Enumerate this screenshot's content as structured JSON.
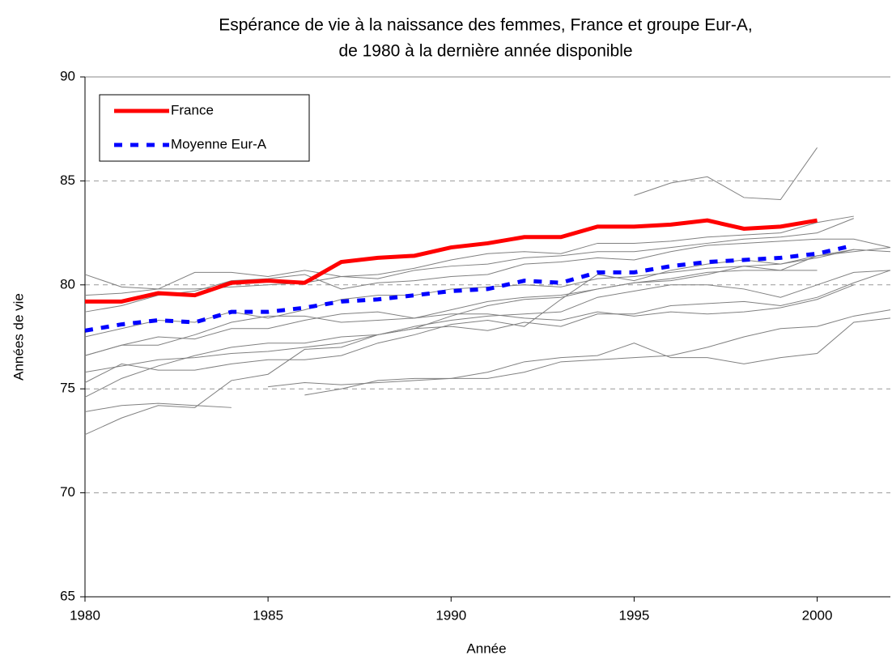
{
  "chart_data": {
    "type": "line",
    "title": [
      "Espérance de vie à la naissance des femmes, France et groupe Eur-A,",
      "de 1980 à la dernière année disponible"
    ],
    "x_label": "Année",
    "y_label": "Années de vie",
    "x": [
      1980,
      1981,
      1982,
      1983,
      1984,
      1985,
      1986,
      1987,
      1988,
      1989,
      1990,
      1991,
      1992,
      1993,
      1994,
      1995,
      1996,
      1997,
      1998,
      1999,
      2000,
      2001,
      2002
    ],
    "xlim": [
      1980,
      2002
    ],
    "xticks": [
      1980,
      1985,
      1990,
      1995,
      2000
    ],
    "ylim": [
      65,
      90
    ],
    "yticks": [
      65,
      70,
      75,
      80,
      85,
      90
    ],
    "grid": true,
    "legend": "top-left",
    "series": [
      {
        "name": "France",
        "color": "#ff0000",
        "style": "solid",
        "values": [
          79.2,
          79.2,
          79.6,
          79.5,
          80.1,
          80.2,
          80.1,
          81.1,
          81.3,
          81.4,
          81.8,
          82.0,
          82.3,
          82.3,
          82.8,
          82.8,
          82.9,
          83.1,
          82.7,
          82.8,
          83.1,
          null,
          null
        ]
      },
      {
        "name": "Moyenne Eur-A",
        "color": "#0000ff",
        "style": "dashed",
        "values": [
          77.8,
          78.1,
          78.3,
          78.2,
          78.7,
          78.7,
          78.9,
          79.2,
          79.3,
          79.5,
          79.7,
          79.8,
          80.2,
          80.1,
          80.6,
          80.6,
          80.9,
          81.1,
          81.2,
          81.3,
          81.5,
          81.9,
          null
        ]
      },
      {
        "color": "#808080",
        "values": [
          80.5,
          79.9,
          79.8,
          79.8,
          79.9,
          80.0,
          80.1,
          80.4,
          80.3,
          80.7,
          80.9,
          81.0,
          81.3,
          81.4,
          81.6,
          81.6,
          81.8,
          82.0,
          82.2,
          82.3,
          82.5,
          83.2,
          null
        ]
      },
      {
        "color": "#808080",
        "values": [
          79.5,
          79.6,
          79.8,
          80.6,
          80.6,
          80.4,
          80.7,
          80.4,
          80.5,
          80.8,
          81.2,
          81.5,
          81.6,
          81.5,
          82.0,
          82.0,
          82.1,
          82.3,
          82.4,
          82.5,
          83.0,
          83.3,
          null
        ]
      },
      {
        "color": "#808080",
        "values": [
          78.7,
          79.0,
          79.5,
          79.7,
          80.2,
          80.3,
          80.5,
          79.8,
          80.1,
          80.2,
          80.4,
          80.5,
          81.0,
          81.1,
          81.3,
          81.2,
          81.6,
          81.9,
          82.0,
          82.1,
          82.2,
          82.2,
          81.8
        ]
      },
      {
        "color": "#808080",
        "values": [
          77.5,
          77.9,
          78.3,
          78.2,
          78.7,
          78.4,
          78.8,
          79.3,
          79.5,
          79.5,
          79.8,
          79.9,
          80.0,
          79.9,
          80.3,
          80.4,
          80.6,
          80.8,
          80.9,
          81.0,
          81.3,
          81.7,
          81.6
        ]
      },
      {
        "color": "#808080",
        "values": [
          76.6,
          77.1,
          77.5,
          77.4,
          77.9,
          77.9,
          78.3,
          78.6,
          78.7,
          78.4,
          78.8,
          79.2,
          79.4,
          79.5,
          79.8,
          80.1,
          80.2,
          80.5,
          80.9,
          80.7,
          81.4,
          81.6,
          81.8
        ]
      },
      {
        "color": "#808080",
        "values": [
          76.6,
          77.1,
          77.1,
          77.6,
          78.2,
          78.5,
          78.5,
          78.2,
          78.3,
          78.4,
          78.6,
          78.6,
          78.4,
          78.3,
          78.7,
          78.5,
          78.7,
          78.6,
          78.7,
          78.9,
          79.3,
          80.0,
          null
        ]
      },
      {
        "color": "#808080",
        "values": [
          75.8,
          76.1,
          76.4,
          76.5,
          76.7,
          76.8,
          77.0,
          77.2,
          77.6,
          78.0,
          78.3,
          78.5,
          78.6,
          78.7,
          79.4,
          79.7,
          80.0,
          80.0,
          79.8,
          79.4,
          80.0,
          80.6,
          80.7
        ]
      },
      {
        "color": "#808080",
        "values": [
          75.3,
          76.2,
          75.9,
          75.9,
          76.2,
          76.4,
          76.4,
          76.6,
          77.2,
          77.6,
          78.1,
          78.3,
          78.0,
          79.3,
          80.5,
          80.2,
          80.7,
          81.0,
          81.2,
          81.0,
          81.4,
          81.7,
          null
        ]
      },
      {
        "color": "#808080",
        "values": [
          74.6,
          75.5,
          76.1,
          76.6,
          77.0,
          77.2,
          77.2,
          77.5,
          77.6,
          77.9,
          78.0,
          77.8,
          78.2,
          78.0,
          78.6,
          78.6,
          79.0,
          79.1,
          79.2,
          79.0,
          79.4,
          80.1,
          80.7
        ]
      },
      {
        "color": "#808080",
        "values": [
          73.9,
          74.2,
          74.3,
          74.2,
          74.1,
          null,
          null,
          null,
          null,
          null,
          null,
          null,
          null,
          null,
          null,
          null,
          null,
          null,
          null,
          null,
          null,
          null,
          null
        ]
      },
      {
        "color": "#808080",
        "values": [
          72.8,
          73.6,
          74.2,
          74.1,
          75.4,
          75.7,
          76.9,
          77.0,
          77.6,
          77.9,
          78.5,
          79.0,
          79.3,
          79.4,
          79.8,
          80.1,
          80.3,
          80.6,
          80.7,
          80.7,
          80.7,
          null,
          null
        ]
      },
      {
        "color": "#808080",
        "values": [
          null,
          null,
          null,
          null,
          null,
          75.1,
          75.3,
          75.2,
          75.3,
          75.4,
          75.5,
          75.5,
          75.8,
          76.3,
          76.4,
          76.5,
          76.6,
          77.0,
          77.5,
          77.9,
          78.0,
          78.5,
          78.8
        ]
      },
      {
        "color": "#808080",
        "values": [
          null,
          null,
          null,
          null,
          null,
          null,
          74.7,
          75.0,
          75.4,
          75.5,
          75.5,
          75.8,
          76.3,
          76.5,
          76.6,
          77.2,
          76.5,
          76.5,
          76.2,
          76.5,
          76.7,
          78.2,
          78.4
        ]
      },
      {
        "color": "#808080",
        "values": [
          null,
          null,
          null,
          null,
          null,
          null,
          null,
          null,
          null,
          null,
          null,
          null,
          null,
          null,
          null,
          84.3,
          84.9,
          85.2,
          84.2,
          84.1,
          86.6,
          null,
          null
        ]
      }
    ]
  }
}
